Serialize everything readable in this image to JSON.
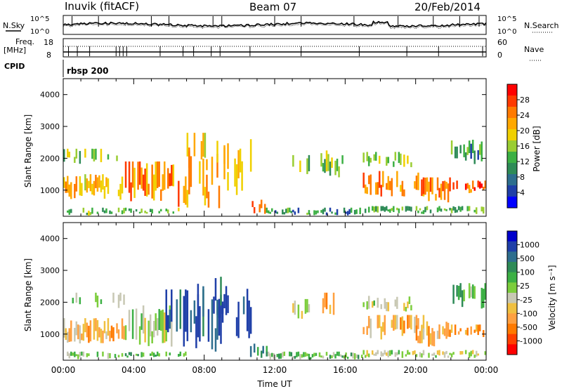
{
  "header": {
    "station": "Inuvik (fitACF)",
    "beam": "Beam 07",
    "date": "20/Feb/2014"
  },
  "top_panel": {
    "left_label": "N.Sky",
    "right_label": "N.Search",
    "left_ticks": [
      "10^5",
      "10^0"
    ],
    "right_ticks": [
      "10^5",
      "10^0"
    ]
  },
  "freq_panel": {
    "left_label_1": "Freq.",
    "left_label_2": "[MHz]",
    "right_label": "Nave",
    "left_ticks": [
      "18",
      "8"
    ],
    "right_ticks": [
      "60",
      "0"
    ]
  },
  "cpid_panel": {
    "label": "CPID",
    "value": "rbsp 200"
  },
  "chart_data": [
    {
      "type": "heatmap",
      "name": "power",
      "xlabel": "Time UT",
      "ylabel": "Slant Range [km]",
      "x_ticks": [
        "00:00",
        "04:00",
        "08:00",
        "12:00",
        "16:00",
        "20:00",
        "00:00"
      ],
      "xlim_hours": [
        0,
        24
      ],
      "ylim_km": [
        180,
        4500
      ],
      "y_ticks": [
        1000,
        2000,
        3000,
        4000
      ],
      "colorbar_label": "Power [dB]",
      "colorbar_ticks": [
        "28",
        "24",
        "20",
        "16",
        "12",
        "8",
        "4"
      ],
      "colorbar_colors": [
        "#ff0000",
        "#ff3a00",
        "#ff7a00",
        "#ffa800",
        "#f0d000",
        "#9acd32",
        "#3cb044",
        "#2e8b57",
        "#2d6e8e",
        "#1f3fa8",
        "#0000ff"
      ]
    },
    {
      "type": "heatmap",
      "name": "velocity",
      "xlabel": "Time UT",
      "ylabel": "Slant Range [km]",
      "x_ticks": [
        "00:00",
        "04:00",
        "08:00",
        "12:00",
        "16:00",
        "20:00",
        "00:00"
      ],
      "xlim_hours": [
        0,
        24
      ],
      "ylim_km": [
        180,
        4500
      ],
      "y_ticks": [
        1000,
        2000,
        3000,
        4000
      ],
      "colorbar_label": "Velocity [m s⁻¹]",
      "colorbar_ticks": [
        "1000",
        "500",
        "100",
        "25",
        "-25",
        "-100",
        "-500",
        "-1000"
      ],
      "colorbar_colors": [
        "#0000cc",
        "#1f3fa8",
        "#2e6e8e",
        "#2e8b57",
        "#3cb044",
        "#7ccd3c",
        "#c8c8b4",
        "#f0c040",
        "#ffa040",
        "#ff7a00",
        "#ff4000",
        "#ff0000"
      ]
    }
  ]
}
